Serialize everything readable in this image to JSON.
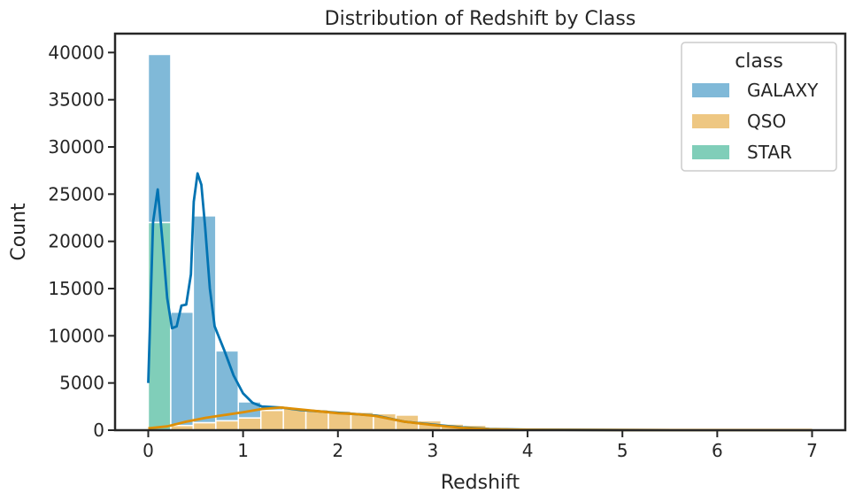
{
  "chart_data": {
    "type": "bar",
    "title": "Distribution of Redshift by Class",
    "xlabel": "Redshift",
    "ylabel": "Count",
    "xlim": [
      -0.35,
      7.35
    ],
    "ylim": [
      0,
      42000
    ],
    "xticks": [
      0,
      1,
      2,
      3,
      4,
      5,
      6,
      7
    ],
    "yticks": [
      0,
      5000,
      10000,
      15000,
      20000,
      25000,
      30000,
      35000,
      40000
    ],
    "stacked": true,
    "bin_width": 0.2375,
    "bin_start": 0,
    "legend": {
      "title": "class",
      "placement": "top-right"
    },
    "series": [
      {
        "name": "GALAXY",
        "color": "#0173b2",
        "values": [
          17800,
          12000,
          21900,
          7400,
          1700,
          200,
          50,
          20,
          10,
          0,
          0,
          0,
          0,
          0,
          0,
          0,
          0,
          0,
          0,
          0,
          0,
          0,
          0,
          0,
          0,
          0,
          0,
          0,
          0,
          0
        ]
      },
      {
        "name": "QSO",
        "color": "#de8f05",
        "values": [
          0,
          500,
          800,
          1000,
          1300,
          2100,
          2300,
          2200,
          2050,
          1900,
          1750,
          1600,
          1000,
          650,
          520,
          300,
          150,
          100,
          80,
          60,
          40,
          30,
          20,
          20,
          10,
          10,
          10,
          10,
          10,
          10
        ]
      },
      {
        "name": "STAR",
        "color": "#029e73",
        "values": [
          22000,
          0,
          0,
          0,
          0,
          0,
          0,
          0,
          0,
          0,
          0,
          0,
          0,
          0,
          0,
          0,
          0,
          0,
          0,
          0,
          0,
          0,
          0,
          0,
          0,
          0,
          0,
          0,
          0,
          0
        ]
      }
    ],
    "kde": [
      {
        "name": "GALAXY",
        "color": "#0173b2",
        "points": [
          [
            0.0,
            5000
          ],
          [
            0.05,
            22000
          ],
          [
            0.1,
            25500
          ],
          [
            0.15,
            20000
          ],
          [
            0.2,
            14000
          ],
          [
            0.25,
            10800
          ],
          [
            0.3,
            11000
          ],
          [
            0.35,
            13200
          ],
          [
            0.4,
            13300
          ],
          [
            0.45,
            16500
          ],
          [
            0.48,
            24200
          ],
          [
            0.52,
            27200
          ],
          [
            0.56,
            26000
          ],
          [
            0.6,
            21500
          ],
          [
            0.65,
            15000
          ],
          [
            0.7,
            11000
          ],
          [
            0.8,
            8500
          ],
          [
            0.9,
            5800
          ],
          [
            1.0,
            3900
          ],
          [
            1.1,
            2900
          ],
          [
            1.2,
            2500
          ],
          [
            1.4,
            2400
          ],
          [
            1.6,
            2150
          ],
          [
            2.0,
            1850
          ],
          [
            2.4,
            1550
          ],
          [
            2.7,
            900
          ],
          [
            3.0,
            600
          ],
          [
            3.3,
            300
          ],
          [
            3.6,
            120
          ],
          [
            4.0,
            60
          ],
          [
            5.0,
            20
          ],
          [
            6.0,
            10
          ],
          [
            7.0,
            5
          ]
        ]
      },
      {
        "name": "QSO",
        "color": "#de8f05",
        "points": [
          [
            0.0,
            200
          ],
          [
            0.2,
            400
          ],
          [
            0.4,
            900
          ],
          [
            0.6,
            1300
          ],
          [
            0.8,
            1600
          ],
          [
            1.0,
            1900
          ],
          [
            1.2,
            2250
          ],
          [
            1.4,
            2400
          ],
          [
            1.6,
            2200
          ],
          [
            1.8,
            2000
          ],
          [
            2.0,
            1800
          ],
          [
            2.2,
            1700
          ],
          [
            2.4,
            1500
          ],
          [
            2.7,
            900
          ],
          [
            3.0,
            550
          ],
          [
            3.3,
            250
          ],
          [
            3.6,
            100
          ],
          [
            4.0,
            50
          ],
          [
            5.0,
            20
          ],
          [
            6.0,
            10
          ],
          [
            7.0,
            5
          ]
        ]
      }
    ]
  }
}
